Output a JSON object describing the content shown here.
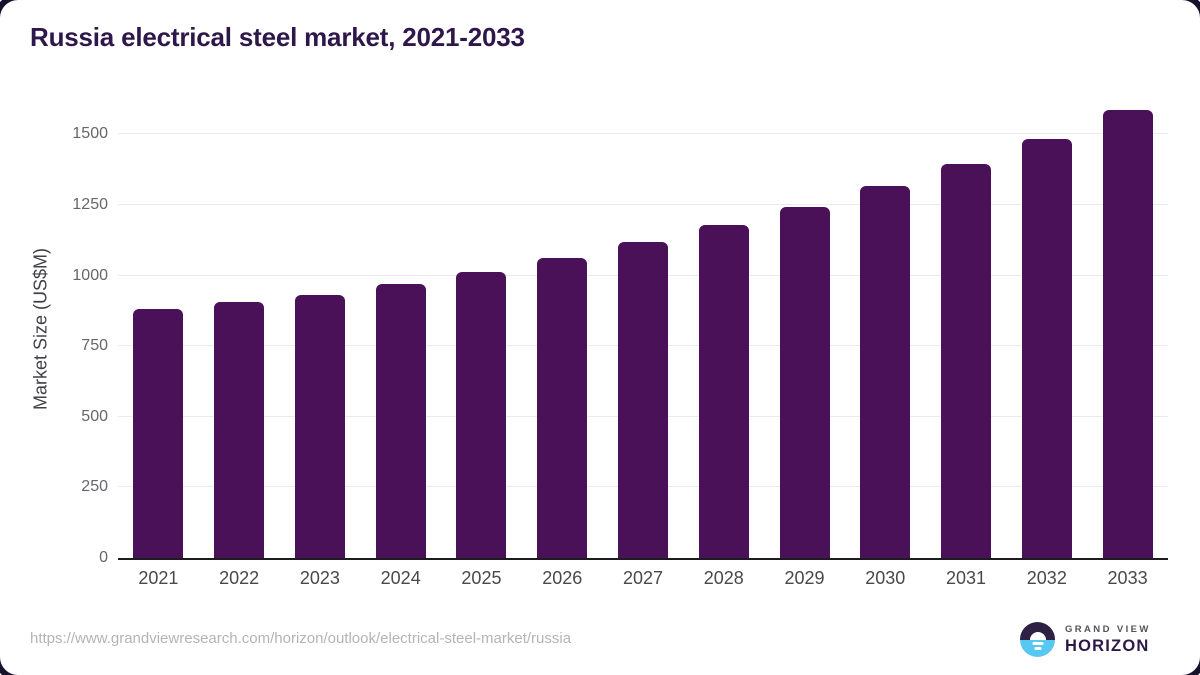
{
  "title": "Russia electrical steel market, 2021-2033",
  "chart_data": {
    "type": "bar",
    "title": "Russia electrical steel market, 2021-2033",
    "categories": [
      "2021",
      "2022",
      "2023",
      "2024",
      "2025",
      "2026",
      "2027",
      "2028",
      "2029",
      "2030",
      "2031",
      "2032",
      "2033"
    ],
    "values": [
      881,
      905,
      931,
      969,
      1013,
      1063,
      1118,
      1178,
      1242,
      1318,
      1395,
      1485,
      1586
    ],
    "xlabel": "",
    "ylabel": "Market Size (US$M)",
    "ylim": [
      0,
      1622
    ],
    "yticks": [
      0,
      250,
      500,
      750,
      1000,
      1250,
      1500
    ],
    "grid": true,
    "legend": false,
    "bar_color": "#4a1158"
  },
  "footer": {
    "source_url": "https://www.grandviewresearch.com/horizon/outlook/electrical-steel-market/russia",
    "logo": {
      "top_text": "GRAND VIEW",
      "bottom_text": "HORIZON"
    }
  },
  "colors": {
    "title": "#2e174b",
    "bar": "#4a1158",
    "gridline": "#ebebed",
    "axis_line": "#1b1b20",
    "tick_label": "#66666c",
    "x_label": "#48484e",
    "url_text": "#b4b4b6",
    "logo_dark": "#2e2144",
    "logo_blue": "#58c7f2"
  }
}
